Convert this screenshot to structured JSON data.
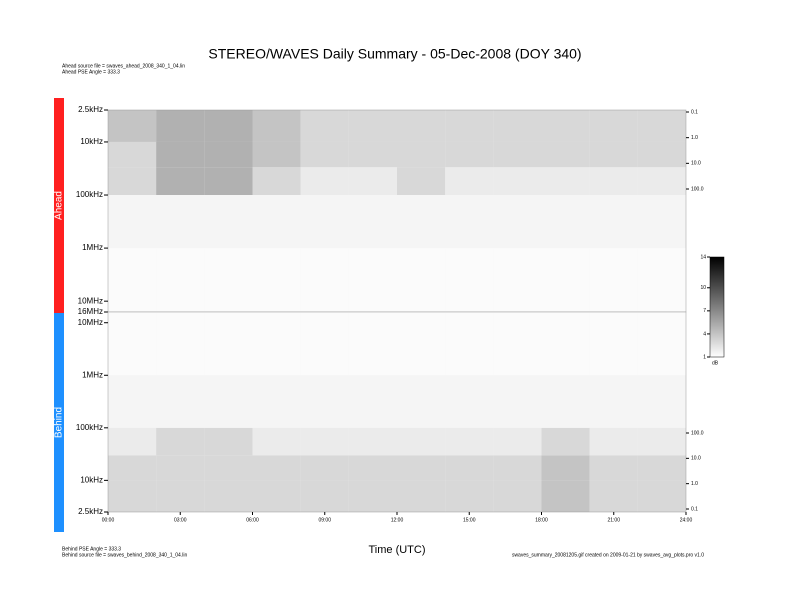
{
  "chart_data": [
    {
      "type": "heatmap",
      "title": "STEREO/WAVES Daily Summary - 05-Dec-2008 (DOY 340)",
      "panel_label": "Ahead",
      "panel_color": "#ff2020",
      "notes": [
        "Ahead source file = swaves_ahead_2008_340_1_04.lin",
        "Ahead PSE Angle = 333.3"
      ],
      "log_y": true,
      "y_inverted": true,
      "xlim": [
        0,
        24
      ],
      "ylim": [
        2500,
        16000000
      ],
      "yticks": [
        {
          "value": 2500,
          "label": "2.5kHz"
        },
        {
          "value": 10000,
          "label": "10kHz"
        },
        {
          "value": 100000,
          "label": "100kHz"
        },
        {
          "value": 1000000,
          "label": "1MHz"
        },
        {
          "value": 10000000,
          "label": "10MHz"
        },
        {
          "value": 16000000,
          "label": "16MHz"
        }
      ],
      "y2lim": [
        0.1,
        100
      ],
      "y2ticks": [
        0.1,
        {
          "value": 1,
          "label": "1.0"
        },
        {
          "value": 10,
          "label": "10.0"
        },
        {
          "value": 100,
          "label": "100.0"
        }
      ],
      "x_edges": [
        0,
        2,
        4,
        6,
        8,
        10,
        12,
        14,
        16,
        18,
        20,
        22,
        24
      ],
      "y_edges": [
        2500,
        10000,
        30000,
        100000,
        1000000,
        16000000
      ],
      "values": [
        [
          4,
          5,
          5,
          4,
          3,
          3,
          3,
          3,
          3,
          3,
          3,
          3
        ],
        [
          3,
          5,
          5,
          4,
          3,
          3,
          3,
          3,
          3,
          3,
          3,
          3
        ],
        [
          3,
          5,
          5,
          3,
          2,
          2,
          3,
          2,
          2,
          2,
          2,
          2
        ],
        [
          1.5,
          1.5,
          1.5,
          1.5,
          1.5,
          1.5,
          1.5,
          1.5,
          1.5,
          1.5,
          1.5,
          1.5
        ],
        [
          1.2,
          1.2,
          1.2,
          1.2,
          1.2,
          1.2,
          1.2,
          1.2,
          1.2,
          1.2,
          1.2,
          1.2
        ]
      ],
      "cmap": [
        "#ffffff",
        "#000000"
      ],
      "colorbar": {
        "label": "dB",
        "clim": [
          1,
          14
        ],
        "ticks": [
          1,
          4,
          7,
          10,
          14
        ]
      }
    },
    {
      "type": "heatmap",
      "panel_label": "Behind",
      "panel_color": "#1e90ff",
      "notes": [
        "Behind PSE Angle = 333.3",
        "Behind source file = swaves_behind_2008_340_1_04.lin"
      ],
      "footer": "swaves_summary_20081205.gif created on 2009-01-21 by swaves_avg_plots.pro v1.0",
      "xlabel": "Time (UTC)",
      "log_y": true,
      "y_inverted": false,
      "xlim": [
        0,
        24
      ],
      "ylim": [
        2500,
        16000000
      ],
      "xticks": [
        {
          "value": 0,
          "label": "00:00"
        },
        {
          "value": 3,
          "label": "03:00"
        },
        {
          "value": 6,
          "label": "06:00"
        },
        {
          "value": 9,
          "label": "09:00"
        },
        {
          "value": 12,
          "label": "12:00"
        },
        {
          "value": 15,
          "label": "15:00"
        },
        {
          "value": 18,
          "label": "18:00"
        },
        {
          "value": 21,
          "label": "21:00"
        },
        {
          "value": 24,
          "label": "24:00"
        }
      ],
      "yticks": [
        {
          "value": 2500,
          "label": "2.5kHz"
        },
        {
          "value": 10000,
          "label": "10kHz"
        },
        {
          "value": 100000,
          "label": "100kHz"
        },
        {
          "value": 1000000,
          "label": "1MHz"
        },
        {
          "value": 10000000,
          "label": "10MHz"
        }
      ],
      "y2lim": [
        0.1,
        100
      ],
      "y2ticks": [
        0.1,
        {
          "value": 1,
          "label": "1.0"
        },
        {
          "value": 10,
          "label": "10.0"
        },
        {
          "value": 100,
          "label": "100.0"
        }
      ],
      "x_edges": [
        0,
        2,
        4,
        6,
        8,
        10,
        12,
        14,
        16,
        18,
        20,
        22,
        24
      ],
      "y_edges": [
        2500,
        10000,
        30000,
        100000,
        1000000,
        16000000
      ],
      "values": [
        [
          3,
          3,
          3,
          3,
          3,
          3,
          3,
          3,
          3,
          4,
          3,
          3
        ],
        [
          3,
          3,
          3,
          3,
          3,
          3,
          3,
          3,
          3,
          4,
          3,
          3
        ],
        [
          2,
          3,
          3,
          2,
          2,
          2,
          2,
          2,
          2,
          3,
          2,
          2
        ],
        [
          1.5,
          1.5,
          1.5,
          1.5,
          1.5,
          1.5,
          1.5,
          1.5,
          1.5,
          1.5,
          1.5,
          1.5
        ],
        [
          1.2,
          1.2,
          1.2,
          1.2,
          1.2,
          1.2,
          1.2,
          1.2,
          1.2,
          1.2,
          1.2,
          1.2
        ]
      ],
      "cmap": [
        "#ffffff",
        "#000000"
      ]
    }
  ]
}
